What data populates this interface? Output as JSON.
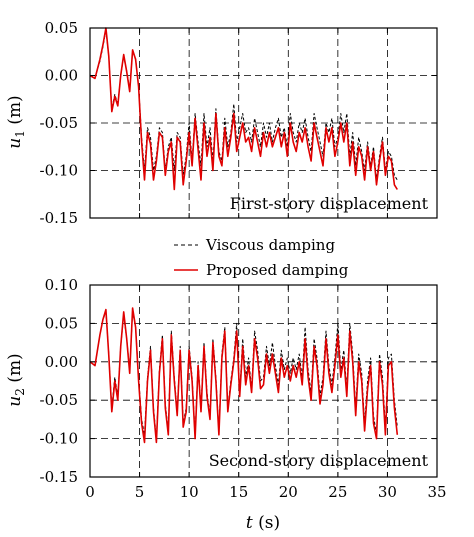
{
  "chart_data": [
    {
      "type": "line",
      "xlim": [
        0,
        35
      ],
      "ylim": [
        -0.15,
        0.05
      ],
      "x_ticks": [
        "",
        "",
        "",
        "",
        "",
        "",
        "",
        ""
      ],
      "y_ticks": [
        "0.05",
        "0.00",
        "-0.05",
        "-0.10",
        "-0.15"
      ],
      "y_tick_values": [
        0.05,
        0.0,
        -0.05,
        -0.1,
        -0.15
      ],
      "ylabel_main": "u",
      "ylabel_sub": "1",
      "ylabel_unit": " (m)",
      "annotation": "First-story displacement",
      "grid": "dashed",
      "series": [
        {
          "name": "Viscous damping",
          "color": "#000000",
          "dashed": true,
          "x": [
            0,
            0.5,
            1,
            1.3,
            1.6,
            1.9,
            2.2,
            2.5,
            2.8,
            3.1,
            3.4,
            3.7,
            4,
            4.3,
            4.6,
            4.9,
            5.2,
            5.5,
            5.8,
            6.1,
            6.4,
            6.7,
            7,
            7.3,
            7.6,
            7.9,
            8.2,
            8.5,
            8.8,
            9.1,
            9.4,
            9.7,
            10,
            10.3,
            10.6,
            10.9,
            11.2,
            11.5,
            11.8,
            12.1,
            12.4,
            12.7,
            13,
            13.3,
            13.6,
            13.9,
            14.2,
            14.5,
            14.8,
            15.1,
            15.4,
            15.7,
            16,
            16.3,
            16.6,
            16.9,
            17.2,
            17.5,
            17.8,
            18.1,
            18.4,
            18.7,
            19,
            19.3,
            19.6,
            19.9,
            20.2,
            20.5,
            20.8,
            21.1,
            21.4,
            21.7,
            22,
            22.3,
            22.6,
            22.9,
            23.2,
            23.5,
            23.8,
            24.1,
            24.4,
            24.7,
            25,
            25.3,
            25.6,
            25.9,
            26.2,
            26.5,
            26.8,
            27.1,
            27.4,
            27.7,
            28,
            28.3,
            28.6,
            28.9,
            29.2,
            29.5,
            29.8,
            30.1,
            30.4,
            30.7,
            31
          ],
          "y": [
            0,
            -0.002,
            0.015,
            0.03,
            0.048,
            0.02,
            -0.035,
            -0.02,
            -0.03,
            0,
            0.02,
            0.005,
            -0.015,
            0.025,
            0.018,
            -0.01,
            -0.065,
            -0.1,
            -0.055,
            -0.065,
            -0.1,
            -0.085,
            -0.055,
            -0.06,
            -0.1,
            -0.075,
            -0.065,
            -0.1,
            -0.06,
            -0.065,
            -0.105,
            -0.085,
            -0.05,
            -0.09,
            -0.04,
            -0.07,
            -0.095,
            -0.04,
            -0.075,
            -0.055,
            -0.09,
            -0.035,
            -0.08,
            -0.09,
            -0.045,
            -0.075,
            -0.06,
            -0.03,
            -0.07,
            -0.055,
            -0.04,
            -0.06,
            -0.055,
            -0.07,
            -0.045,
            -0.06,
            -0.075,
            -0.05,
            -0.065,
            -0.05,
            -0.07,
            -0.055,
            -0.045,
            -0.065,
            -0.055,
            -0.075,
            -0.04,
            -0.06,
            -0.07,
            -0.05,
            -0.06,
            -0.045,
            -0.065,
            -0.08,
            -0.04,
            -0.055,
            -0.07,
            -0.085,
            -0.05,
            -0.06,
            -0.045,
            -0.075,
            -0.065,
            -0.04,
            -0.06,
            -0.04,
            -0.085,
            -0.06,
            -0.095,
            -0.065,
            -0.08,
            -0.1,
            -0.07,
            -0.095,
            -0.075,
            -0.11,
            -0.085,
            -0.065,
            -0.1,
            -0.08,
            -0.085,
            -0.105,
            -0.11
          ]
        },
        {
          "name": "Proposed damping",
          "color": "#e00000",
          "dashed": false,
          "x": [
            0,
            0.5,
            1,
            1.3,
            1.6,
            1.9,
            2.2,
            2.5,
            2.8,
            3.1,
            3.4,
            3.7,
            4,
            4.3,
            4.6,
            4.9,
            5.2,
            5.5,
            5.8,
            6.1,
            6.4,
            6.7,
            7,
            7.3,
            7.6,
            7.9,
            8.2,
            8.5,
            8.8,
            9.1,
            9.4,
            9.7,
            10,
            10.3,
            10.6,
            10.9,
            11.2,
            11.5,
            11.8,
            12.1,
            12.4,
            12.7,
            13,
            13.3,
            13.6,
            13.9,
            14.2,
            14.5,
            14.8,
            15.1,
            15.4,
            15.7,
            16,
            16.3,
            16.6,
            16.9,
            17.2,
            17.5,
            17.8,
            18.1,
            18.4,
            18.7,
            19,
            19.3,
            19.6,
            19.9,
            20.2,
            20.5,
            20.8,
            21.1,
            21.4,
            21.7,
            22,
            22.3,
            22.6,
            22.9,
            23.2,
            23.5,
            23.8,
            24.1,
            24.4,
            24.7,
            25,
            25.3,
            25.6,
            25.9,
            26.2,
            26.5,
            26.8,
            27.1,
            27.4,
            27.7,
            28,
            28.3,
            28.6,
            28.9,
            29.2,
            29.5,
            29.8,
            30.1,
            30.4,
            30.7,
            31
          ],
          "y": [
            0,
            -0.003,
            0.017,
            0.032,
            0.05,
            0.02,
            -0.038,
            -0.022,
            -0.032,
            0,
            0.022,
            0.004,
            -0.017,
            0.027,
            0.017,
            -0.012,
            -0.07,
            -0.11,
            -0.06,
            -0.072,
            -0.11,
            -0.09,
            -0.06,
            -0.065,
            -0.105,
            -0.08,
            -0.07,
            -0.12,
            -0.065,
            -0.07,
            -0.115,
            -0.09,
            -0.06,
            -0.095,
            -0.045,
            -0.078,
            -0.11,
            -0.05,
            -0.085,
            -0.065,
            -0.1,
            -0.04,
            -0.085,
            -0.095,
            -0.055,
            -0.085,
            -0.065,
            -0.04,
            -0.08,
            -0.065,
            -0.05,
            -0.07,
            -0.065,
            -0.08,
            -0.055,
            -0.07,
            -0.085,
            -0.06,
            -0.075,
            -0.06,
            -0.075,
            -0.065,
            -0.055,
            -0.075,
            -0.06,
            -0.085,
            -0.05,
            -0.07,
            -0.08,
            -0.06,
            -0.07,
            -0.055,
            -0.075,
            -0.09,
            -0.05,
            -0.065,
            -0.08,
            -0.095,
            -0.055,
            -0.07,
            -0.055,
            -0.085,
            -0.07,
            -0.05,
            -0.07,
            -0.05,
            -0.095,
            -0.07,
            -0.105,
            -0.075,
            -0.085,
            -0.11,
            -0.075,
            -0.1,
            -0.08,
            -0.115,
            -0.09,
            -0.07,
            -0.105,
            -0.085,
            -0.09,
            -0.115,
            -0.12
          ]
        }
      ]
    },
    {
      "type": "line",
      "xlim": [
        0,
        35
      ],
      "ylim": [
        -0.15,
        0.1
      ],
      "x_ticks": [
        "0",
        "5",
        "10",
        "15",
        "20",
        "25",
        "30",
        "35"
      ],
      "y_ticks": [
        "0.10",
        "0.05",
        "0.00",
        "-0.05",
        "-0.10",
        "-0.15"
      ],
      "y_tick_values": [
        0.1,
        0.05,
        0.0,
        -0.05,
        -0.1,
        -0.15
      ],
      "ylabel_main": "u",
      "ylabel_sub": "2",
      "ylabel_unit": " (m)",
      "xlabel_main": "t",
      "xlabel_unit": " (s)",
      "annotation": "Second-story displacement",
      "grid": "dashed",
      "series": [
        {
          "name": "Viscous damping",
          "color": "#000000",
          "dashed": true,
          "x": [
            0,
            0.5,
            1,
            1.3,
            1.6,
            1.9,
            2.2,
            2.5,
            2.8,
            3.1,
            3.4,
            3.7,
            4,
            4.3,
            4.6,
            4.9,
            5.2,
            5.5,
            5.8,
            6.1,
            6.4,
            6.7,
            7,
            7.3,
            7.6,
            7.9,
            8.2,
            8.5,
            8.8,
            9.1,
            9.4,
            9.7,
            10,
            10.3,
            10.6,
            10.9,
            11.2,
            11.5,
            11.8,
            12.1,
            12.4,
            12.7,
            13,
            13.3,
            13.6,
            13.9,
            14.2,
            14.5,
            14.8,
            15.1,
            15.4,
            15.7,
            16,
            16.3,
            16.6,
            16.9,
            17.2,
            17.5,
            17.8,
            18.1,
            18.4,
            18.7,
            19,
            19.3,
            19.6,
            19.9,
            20.2,
            20.5,
            20.8,
            21.1,
            21.4,
            21.7,
            22,
            22.3,
            22.6,
            22.9,
            23.2,
            23.5,
            23.8,
            24.1,
            24.4,
            24.7,
            25,
            25.3,
            25.6,
            25.9,
            26.2,
            26.5,
            26.8,
            27.1,
            27.4,
            27.7,
            28,
            28.3,
            28.6,
            28.9,
            29.2,
            29.5,
            29.8,
            30.1,
            30.4,
            30.7,
            31
          ],
          "y": [
            0,
            -0.005,
            0.035,
            0.055,
            0.065,
            0.01,
            -0.06,
            -0.02,
            -0.045,
            0.02,
            0.06,
            0.03,
            -0.01,
            0.065,
            0.045,
            -0.02,
            -0.075,
            -0.095,
            -0.02,
            0.02,
            -0.06,
            -0.1,
            -0.01,
            0.035,
            -0.055,
            -0.09,
            0.04,
            -0.02,
            -0.065,
            0.02,
            -0.08,
            -0.06,
            0.02,
            -0.02,
            -0.095,
            0,
            -0.06,
            0.025,
            -0.04,
            -0.07,
            0.03,
            -0.02,
            -0.09,
            0.01,
            0.045,
            -0.06,
            -0.025,
            0.005,
            0.05,
            -0.04,
            0.03,
            -0.02,
            0.005,
            -0.035,
            0.04,
            0.015,
            -0.025,
            -0.02,
            0.02,
            -0.005,
            0.025,
            -0.005,
            -0.03,
            0.015,
            -0.01,
            0.005,
            -0.015,
            0.005,
            -0.01,
            0.01,
            -0.02,
            0.045,
            -0.01,
            -0.04,
            0.03,
            0.005,
            -0.045,
            -0.02,
            0.04,
            -0.005,
            -0.03,
            0.005,
            0.05,
            -0.01,
            0.015,
            -0.035,
            0.05,
            0.01,
            -0.06,
            0.01,
            -0.015,
            -0.08,
            -0.025,
            0.005,
            -0.07,
            -0.095,
            0.01,
            -0.02,
            -0.085,
            0.005,
            0.01,
            -0.05,
            -0.085
          ]
        },
        {
          "name": "Proposed damping",
          "color": "#e00000",
          "dashed": false,
          "x": [
            0,
            0.5,
            1,
            1.3,
            1.6,
            1.9,
            2.2,
            2.5,
            2.8,
            3.1,
            3.4,
            3.7,
            4,
            4.3,
            4.6,
            4.9,
            5.2,
            5.5,
            5.8,
            6.1,
            6.4,
            6.7,
            7,
            7.3,
            7.6,
            7.9,
            8.2,
            8.5,
            8.8,
            9.1,
            9.4,
            9.7,
            10,
            10.3,
            10.6,
            10.9,
            11.2,
            11.5,
            11.8,
            12.1,
            12.4,
            12.7,
            13,
            13.3,
            13.6,
            13.9,
            14.2,
            14.5,
            14.8,
            15.1,
            15.4,
            15.7,
            16,
            16.3,
            16.6,
            16.9,
            17.2,
            17.5,
            17.8,
            18.1,
            18.4,
            18.7,
            19,
            19.3,
            19.6,
            19.9,
            20.2,
            20.5,
            20.8,
            21.1,
            21.4,
            21.7,
            22,
            22.3,
            22.6,
            22.9,
            23.2,
            23.5,
            23.8,
            24.1,
            24.4,
            24.7,
            25,
            25.3,
            25.6,
            25.9,
            26.2,
            26.5,
            26.8,
            27.1,
            27.4,
            27.7,
            28,
            28.3,
            28.6,
            28.9,
            29.2,
            29.5,
            29.8,
            30.1,
            30.4,
            30.7,
            31
          ],
          "y": [
            0,
            -0.005,
            0.035,
            0.055,
            0.068,
            0.008,
            -0.065,
            -0.025,
            -0.05,
            0.02,
            0.065,
            0.03,
            -0.015,
            0.07,
            0.045,
            -0.025,
            -0.08,
            -0.105,
            -0.025,
            0.015,
            -0.065,
            -0.105,
            -0.015,
            0.03,
            -0.06,
            -0.095,
            0.035,
            -0.025,
            -0.07,
            0.015,
            -0.085,
            -0.065,
            0.015,
            -0.025,
            -0.1,
            -0.005,
            -0.065,
            0.02,
            -0.045,
            -0.075,
            0.025,
            -0.025,
            -0.095,
            0.005,
            0.04,
            -0.065,
            -0.03,
            0,
            0.04,
            -0.045,
            0.02,
            -0.03,
            -0.005,
            -0.04,
            0.03,
            0.005,
            -0.035,
            -0.03,
            0.01,
            -0.015,
            0.01,
            -0.015,
            -0.04,
            0.005,
            -0.02,
            -0.005,
            -0.025,
            -0.005,
            -0.02,
            0,
            -0.03,
            0.03,
            -0.02,
            -0.05,
            0.02,
            -0.005,
            -0.055,
            -0.03,
            0.03,
            -0.015,
            -0.04,
            -0.005,
            0.035,
            -0.02,
            0.005,
            -0.045,
            0.04,
            0,
            -0.07,
            0,
            -0.025,
            -0.09,
            -0.035,
            -0.005,
            -0.08,
            -0.1,
            0,
            -0.03,
            -0.095,
            -0.005,
            0,
            -0.06,
            -0.095
          ]
        }
      ]
    }
  ],
  "legend": {
    "placement": "between-panels",
    "items": [
      {
        "label": "Viscous damping",
        "color": "#000000",
        "dashed": true
      },
      {
        "label": "Proposed damping",
        "color": "#e00000",
        "dashed": false
      }
    ]
  }
}
